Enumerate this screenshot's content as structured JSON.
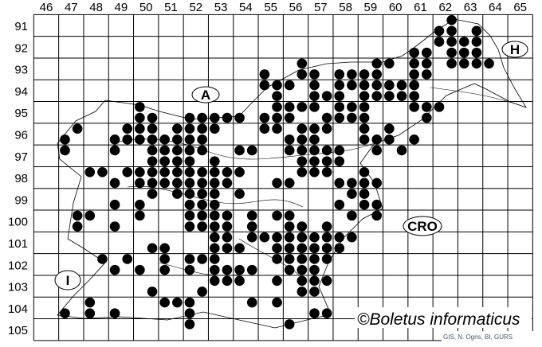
{
  "map": {
    "columns": [
      "46",
      "47",
      "48",
      "49",
      "50",
      "51",
      "52",
      "53",
      "54",
      "55",
      "56",
      "57",
      "58",
      "59",
      "60",
      "61",
      "62",
      "63",
      "64",
      "65"
    ],
    "rows": [
      "91",
      "92",
      "93",
      "94",
      "95",
      "96",
      "97",
      "98",
      "99",
      "100",
      "101",
      "102",
      "103",
      "104",
      "105"
    ],
    "regions": {
      "austria": "A",
      "hungary": "H",
      "croatia": "CRO",
      "italy": "I"
    },
    "copyright": "©Boletus informaticus",
    "credit": "GIS, N. Ogris, BI, GURS",
    "dot_color": "#000000",
    "grid_color": "#000000"
  },
  "chart_data": {
    "type": "scatter",
    "title": "",
    "xlabel": "",
    "ylabel": "",
    "xlim": [
      45.5,
      65.5
    ],
    "ylim": [
      90.5,
      105.5
    ],
    "y_axis_inverted": true,
    "grid": true,
    "records": [
      {
        "y": 90.75,
        "x": [
          62.25
        ]
      },
      {
        "y": 91.25,
        "x": [
          61.75,
          62.25,
          63.25
        ]
      },
      {
        "y": 91.75,
        "x": [
          61.75,
          62.25,
          62.75,
          63.25
        ]
      },
      {
        "y": 92.25,
        "x": [
          60.75,
          61.25,
          62.25,
          62.75,
          63.25
        ]
      },
      {
        "y": 92.75,
        "x": [
          56.25,
          59.25,
          59.75,
          60.75,
          61.25,
          62.25,
          62.75,
          63.25,
          63.75
        ]
      },
      {
        "y": 93.25,
        "x": [
          54.75,
          56.25,
          56.75,
          57.75,
          58.25,
          58.75,
          59.25,
          60.75,
          61.25
        ]
      },
      {
        "y": 93.75,
        "x": [
          54.75,
          55.25,
          55.75,
          56.75,
          57.75,
          58.25,
          58.75,
          59.25,
          59.75,
          60.25,
          60.75
        ]
      },
      {
        "y": 94.25,
        "x": [
          55.25,
          56.75,
          57.25,
          57.75,
          58.75,
          59.25,
          59.75,
          60.25,
          60.75
        ]
      },
      {
        "y": 94.75,
        "x": [
          49.75,
          55.25,
          55.75,
          56.25,
          56.75,
          57.75,
          58.25,
          58.75,
          60.75,
          61.25,
          61.75
        ]
      },
      {
        "y": 95.25,
        "x": [
          49.75,
          50.25,
          51.75,
          52.25,
          52.75,
          53.25,
          53.75,
          54.75,
          55.25,
          55.75,
          57.25,
          57.75,
          58.25,
          58.75,
          61.25
        ]
      },
      {
        "y": 95.75,
        "x": [
          47.25,
          49.25,
          49.75,
          50.25,
          51.25,
          51.75,
          52.25,
          52.75,
          54.75,
          55.25,
          56.25,
          56.75,
          57.25,
          58.75,
          59.75
        ]
      },
      {
        "y": 96.25,
        "x": [
          46.75,
          48.75,
          49.25,
          49.75,
          50.25,
          50.75,
          51.25,
          51.75,
          52.25,
          55.75,
          56.25,
          56.75,
          58.75,
          59.25,
          59.75,
          60.75
        ]
      },
      {
        "y": 96.75,
        "x": [
          46.75,
          48.75,
          50.25,
          50.75,
          51.25,
          51.75,
          52.25,
          53.75,
          54.25,
          55.75,
          56.25,
          56.75,
          57.25,
          57.75,
          59.25,
          60.25
        ]
      },
      {
        "y": 97.25,
        "x": [
          50.25,
          50.75,
          51.25,
          51.75,
          52.75,
          56.25,
          56.75,
          57.25,
          57.75
        ]
      },
      {
        "y": 97.75,
        "x": [
          47.75,
          48.25,
          49.25,
          49.75,
          50.25,
          50.75,
          51.25,
          51.75,
          52.25,
          52.75,
          53.25,
          53.75,
          56.25,
          56.75,
          57.25,
          58.75
        ]
      },
      {
        "y": 98.25,
        "x": [
          48.75,
          49.75,
          50.25,
          50.75,
          51.25,
          51.75,
          52.25,
          52.75,
          53.25,
          55.25,
          55.75,
          57.75,
          58.25,
          58.75,
          59.25
        ]
      },
      {
        "y": 98.75,
        "x": [
          50.25,
          51.25,
          51.75,
          52.25,
          52.75,
          53.75,
          58.25,
          58.75
        ]
      },
      {
        "y": 99.25,
        "x": [
          48.75,
          49.75,
          51.75,
          52.25,
          52.75,
          57.75,
          58.75,
          59.25
        ]
      },
      {
        "y": 99.75,
        "x": [
          47.25,
          47.75,
          49.75,
          51.75,
          52.25,
          52.75,
          53.25,
          54.25,
          55.25,
          55.75,
          58.25,
          59.25
        ]
      },
      {
        "y": 100.25,
        "x": [
          47.25,
          48.75,
          51.75,
          52.25,
          52.75,
          53.25,
          54.25,
          55.75,
          56.25,
          57.25
        ]
      },
      {
        "y": 100.75,
        "x": [
          52.75,
          53.25,
          54.25,
          54.75,
          55.25,
          55.75,
          56.25,
          56.75,
          57.25,
          57.75,
          58.25
        ]
      },
      {
        "y": 101.25,
        "x": [
          50.25,
          50.75,
          52.75,
          53.25,
          53.75,
          55.25,
          55.75,
          56.25,
          56.75,
          57.25,
          57.75
        ]
      },
      {
        "y": 101.75,
        "x": [
          48.25,
          49.25,
          50.75,
          51.75,
          52.25,
          52.75,
          55.25,
          55.75,
          56.25,
          56.75,
          57.25
        ]
      },
      {
        "y": 102.25,
        "x": [
          48.75,
          49.75,
          50.75,
          51.75,
          52.75,
          53.25,
          53.75,
          54.25,
          55.75,
          56.25,
          56.75
        ]
      },
      {
        "y": 102.75,
        "x": [
          52.75,
          53.25,
          53.75,
          55.25,
          56.25,
          56.75,
          57.25
        ]
      },
      {
        "y": 103.25,
        "x": [
          50.25,
          52.25,
          56.25,
          56.75
        ]
      },
      {
        "y": 103.75,
        "x": [
          47.75,
          50.75,
          51.25,
          51.75,
          54.25,
          55.25
        ]
      },
      {
        "y": 104.25,
        "x": [
          46.75,
          47.75,
          48.75,
          51.75,
          56.75,
          57.25
        ]
      },
      {
        "y": 104.75,
        "x": [
          51.75,
          55.75
        ]
      }
    ]
  }
}
